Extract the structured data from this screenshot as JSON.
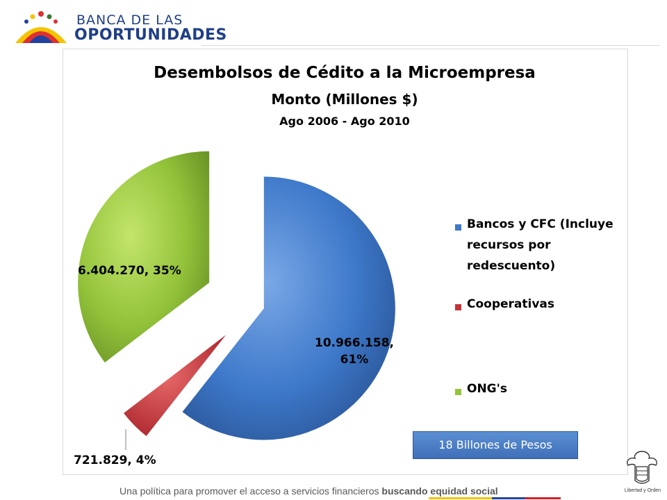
{
  "brand": {
    "line1": "BANCA DE LAS",
    "line2": "OPORTUNIDADES"
  },
  "chart_data": {
    "type": "pie",
    "title": "Desembolsos de Cédito a la Microempresa",
    "subtitle": "Monto (Millones $)",
    "period": "Ago 2006 - Ago 2010",
    "slices": [
      {
        "name": "Bancos y CFC (Incluye recursos por redescuento)",
        "value": 10966158,
        "percent": 61,
        "label": "10.966.158, 61%",
        "color": "#3d78c9"
      },
      {
        "name": "Cooperativas",
        "value": 721829,
        "percent": 4,
        "label": "721.829, 4%",
        "color": "#c4333a"
      },
      {
        "name": "ONG's",
        "value": 6404270,
        "percent": 35,
        "label": "6.404.270, 35%",
        "color": "#93c33a"
      }
    ],
    "legend_position": "right",
    "exploded": true
  },
  "total_box": "18 Billones de Pesos",
  "footer": {
    "text": "Una política para promover el acceso a servicios financieros ",
    "emphasis": "buscando equidad social"
  },
  "coat_caption": "Libertad y Orden"
}
